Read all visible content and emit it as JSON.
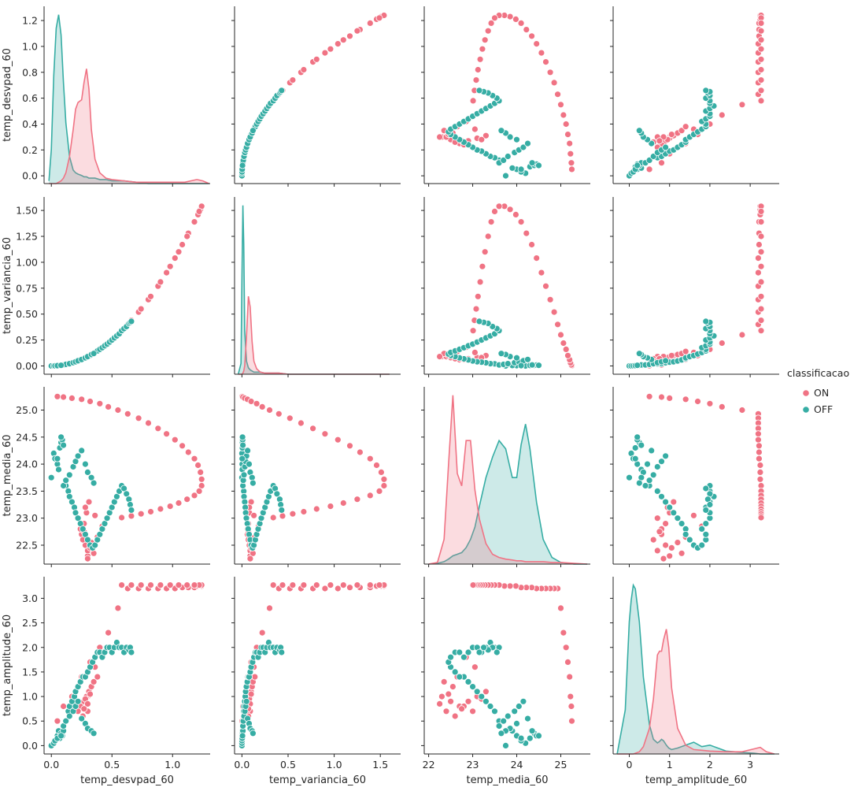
{
  "chart_data": {
    "type": "scatter",
    "subtype": "pairplot",
    "hue": "classificacao",
    "variables": [
      "temp_desvpad_60",
      "temp_variancia_60",
      "temp_media_60",
      "temp_amplitude_60"
    ],
    "legend": {
      "title": "classificacao",
      "placement": "right",
      "entries": [
        {
          "label": "ON",
          "color": "#f07384"
        },
        {
          "label": "OFF",
          "color": "#36ada4"
        }
      ]
    },
    "colors": {
      "ON": "#f07384",
      "OFF": "#36ada4",
      "axis": "#262626"
    },
    "grid": false,
    "axes": {
      "temp_desvpad_60": {
        "range": [
          -0.06,
          1.31
        ],
        "ticks": [
          0.0,
          0.5,
          1.0
        ],
        "tick_labels": [
          "0.0",
          "0.5",
          "1.0"
        ],
        "y_range": [
          -0.06,
          1.31
        ],
        "y_ticks": [
          0.0,
          0.2,
          0.4,
          0.6,
          0.8,
          1.0,
          1.2
        ],
        "y_tick_labels": [
          "0.0",
          "0.2",
          "0.4",
          "0.6",
          "0.8",
          "1.0",
          "1.2"
        ]
      },
      "temp_variancia_60": {
        "range": [
          -0.08,
          1.72
        ],
        "ticks": [
          0.0,
          0.5,
          1.0,
          1.5
        ],
        "tick_labels": [
          "0.0",
          "0.5",
          "1.0",
          "1.5"
        ],
        "y_range": [
          -0.08,
          1.63
        ],
        "y_ticks": [
          0.0,
          0.25,
          0.5,
          0.75,
          1.0,
          1.25,
          1.5
        ],
        "y_tick_labels": [
          "0.00",
          "0.25",
          "0.50",
          "0.75",
          "1.00",
          "1.25",
          "1.50"
        ]
      },
      "temp_media_60": {
        "range": [
          21.9,
          25.67
        ],
        "ticks": [
          22,
          23,
          24,
          25
        ],
        "tick_labels": [
          "22",
          "23",
          "24",
          "25"
        ],
        "y_range": [
          22.15,
          25.43
        ],
        "y_ticks": [
          22.5,
          23.0,
          23.5,
          24.0,
          24.5,
          25.0
        ],
        "y_tick_labels": [
          "22.5",
          "23.0",
          "23.5",
          "24.0",
          "24.5",
          "25.0"
        ]
      },
      "temp_amplitude_60": {
        "range": [
          -0.4,
          3.72
        ],
        "ticks": [
          0,
          1,
          2,
          3
        ],
        "tick_labels": [
          "0",
          "1",
          "2",
          "3"
        ],
        "y_range": [
          -0.17,
          3.44
        ],
        "y_ticks": [
          0.0,
          0.5,
          1.0,
          1.5,
          2.0,
          2.5,
          3.0
        ],
        "y_tick_labels": [
          "0.0",
          "0.5",
          "1.0",
          "1.5",
          "2.0",
          "2.5",
          "3.0"
        ]
      }
    },
    "kde": {
      "temp_desvpad_60": {
        "x": [
          -0.02,
          0.0,
          0.02,
          0.04,
          0.06,
          0.08,
          0.1,
          0.12,
          0.15,
          0.18,
          0.2,
          0.22,
          0.25,
          0.27,
          0.29,
          0.31,
          0.33,
          0.36,
          0.4,
          0.45,
          0.5,
          0.6,
          0.7,
          0.8,
          1.0,
          1.1,
          1.2,
          1.25,
          1.3
        ],
        "ON": [
          0,
          0,
          0,
          0,
          0.01,
          0.02,
          0.04,
          0.08,
          0.2,
          0.4,
          0.55,
          0.6,
          0.62,
          0.75,
          0.85,
          0.7,
          0.4,
          0.18,
          0.08,
          0.04,
          0.03,
          0.02,
          0.01,
          0.01,
          0.01,
          0.01,
          0.03,
          0.02,
          0.0
        ],
        "OFF": [
          0.02,
          0.25,
          0.8,
          1.15,
          1.25,
          1.1,
          0.75,
          0.45,
          0.2,
          0.1,
          0.08,
          0.07,
          0.06,
          0.05,
          0.05,
          0.04,
          0.04,
          0.04,
          0.03,
          0.03,
          0.02,
          0.02,
          0.01,
          0.0,
          0.0,
          0.0,
          0.0,
          0.0,
          0.0
        ]
      },
      "temp_variancia_60": {
        "x": [
          -0.04,
          -0.01,
          0.0,
          0.01,
          0.02,
          0.03,
          0.05,
          0.07,
          0.09,
          0.11,
          0.13,
          0.16,
          0.2,
          0.25,
          0.3,
          0.4,
          0.5,
          0.8,
          1.2,
          1.6
        ],
        "ON": [
          0,
          0,
          0,
          0.01,
          0.03,
          0.08,
          0.35,
          0.72,
          0.62,
          0.3,
          0.12,
          0.05,
          0.02,
          0.01,
          0.01,
          0.01,
          0.0,
          0.0,
          0.0,
          0.0
        ],
        "OFF": [
          0,
          0.1,
          0.9,
          1.56,
          1.2,
          0.4,
          0.12,
          0.06,
          0.04,
          0.03,
          0.02,
          0.02,
          0.02,
          0.01,
          0.01,
          0.01,
          0.0,
          0.0,
          0.0,
          0.0
        ]
      },
      "temp_media_60": {
        "x": [
          22.0,
          22.2,
          22.35,
          22.45,
          22.55,
          22.65,
          22.75,
          22.85,
          22.95,
          23.05,
          23.15,
          23.3,
          23.45,
          23.6,
          23.75,
          23.9,
          24.0,
          24.1,
          24.2,
          24.3,
          24.45,
          24.6,
          24.8,
          25.0,
          25.3,
          25.6
        ],
        "ON": [
          0.0,
          0.02,
          0.3,
          1.2,
          2.05,
          1.1,
          0.95,
          1.5,
          1.5,
          0.9,
          0.55,
          0.25,
          0.12,
          0.08,
          0.06,
          0.05,
          0.04,
          0.04,
          0.03,
          0.03,
          0.03,
          0.03,
          0.02,
          0.02,
          0.01,
          0.0
        ],
        "OFF": [
          0.0,
          0.01,
          0.03,
          0.06,
          0.1,
          0.12,
          0.14,
          0.2,
          0.3,
          0.45,
          0.7,
          1.05,
          1.3,
          1.5,
          1.4,
          1.05,
          1.05,
          1.45,
          1.7,
          1.4,
          0.75,
          0.3,
          0.08,
          0.02,
          0.0,
          0.0
        ]
      },
      "temp_amplitude_60": {
        "x": [
          -0.3,
          -0.1,
          0.0,
          0.05,
          0.1,
          0.15,
          0.25,
          0.35,
          0.5,
          0.6,
          0.7,
          0.75,
          0.8,
          0.85,
          0.92,
          0.98,
          1.05,
          1.2,
          1.4,
          1.6,
          1.8,
          2.0,
          2.4,
          2.8,
          3.1,
          3.25,
          3.4,
          3.6
        ],
        "ON": [
          0,
          0,
          0,
          0,
          0,
          0.01,
          0.03,
          0.1,
          0.35,
          0.75,
          1.35,
          1.4,
          1.4,
          1.55,
          1.7,
          1.45,
          0.9,
          0.35,
          0.12,
          0.06,
          0.05,
          0.04,
          0.03,
          0.03,
          0.07,
          0.09,
          0.03,
          0.0
        ],
        "OFF": [
          0.0,
          0.6,
          1.8,
          2.1,
          2.3,
          2.25,
          1.8,
          1.05,
          0.4,
          0.2,
          0.15,
          0.17,
          0.2,
          0.18,
          0.12,
          0.08,
          0.06,
          0.08,
          0.12,
          0.16,
          0.1,
          0.12,
          0.04,
          0.02,
          0.01,
          0.0,
          0.0,
          0.0
        ]
      }
    },
    "observations": {
      "ON": [
        [
          0.05,
          0.002,
          25.25,
          0.5
        ],
        [
          0.1,
          0.01,
          25.24,
          0.8
        ],
        [
          0.17,
          0.03,
          25.22,
          1.0
        ],
        [
          0.25,
          0.06,
          25.2,
          1.4
        ],
        [
          0.32,
          0.1,
          25.16,
          1.7
        ],
        [
          0.4,
          0.16,
          25.12,
          2.0
        ],
        [
          0.47,
          0.22,
          25.06,
          2.3
        ],
        [
          0.55,
          0.3,
          25.0,
          2.8
        ],
        [
          0.63,
          0.4,
          24.93,
          3.2
        ],
        [
          0.72,
          0.52,
          24.85,
          3.2
        ],
        [
          0.8,
          0.64,
          24.76,
          3.2
        ],
        [
          0.88,
          0.77,
          24.66,
          3.2
        ],
        [
          0.95,
          0.9,
          24.56,
          3.2
        ],
        [
          1.02,
          1.04,
          24.45,
          3.2
        ],
        [
          1.08,
          1.17,
          24.34,
          3.22
        ],
        [
          1.13,
          1.28,
          24.22,
          3.22
        ],
        [
          1.18,
          1.39,
          24.1,
          3.22
        ],
        [
          1.21,
          1.46,
          23.98,
          3.25
        ],
        [
          1.23,
          1.51,
          23.85,
          3.25
        ],
        [
          1.24,
          1.54,
          23.72,
          3.25
        ],
        [
          1.24,
          1.54,
          23.6,
          3.27
        ],
        [
          1.22,
          1.49,
          23.5,
          3.27
        ],
        [
          1.18,
          1.39,
          23.42,
          3.27
        ],
        [
          1.12,
          1.25,
          23.35,
          3.27
        ],
        [
          1.05,
          1.1,
          23.28,
          3.27
        ],
        [
          0.98,
          0.96,
          23.22,
          3.27
        ],
        [
          0.9,
          0.81,
          23.17,
          3.27
        ],
        [
          0.82,
          0.67,
          23.12,
          3.27
        ],
        [
          0.74,
          0.55,
          23.08,
          3.27
        ],
        [
          0.66,
          0.44,
          23.04,
          3.27
        ],
        [
          0.58,
          0.34,
          23.01,
          3.27
        ],
        [
          0.3,
          0.09,
          22.3,
          1.0
        ],
        [
          0.28,
          0.08,
          22.5,
          0.9
        ],
        [
          0.25,
          0.06,
          22.7,
          0.8
        ],
        [
          0.27,
          0.07,
          22.9,
          0.9
        ],
        [
          0.29,
          0.08,
          23.1,
          1.0
        ],
        [
          0.31,
          0.1,
          23.3,
          1.1
        ],
        [
          0.3,
          0.09,
          22.4,
          0.7
        ],
        [
          0.26,
          0.07,
          22.6,
          0.6
        ],
        [
          0.24,
          0.06,
          22.8,
          0.8
        ],
        [
          0.33,
          0.11,
          22.55,
          1.2
        ],
        [
          0.35,
          0.12,
          22.35,
          1.3
        ],
        [
          0.22,
          0.05,
          23.0,
          0.7
        ],
        [
          0.28,
          0.08,
          23.2,
          0.95
        ],
        [
          0.32,
          0.1,
          22.45,
          1.05
        ],
        [
          0.38,
          0.14,
          22.65,
          1.4
        ],
        [
          0.42,
          0.18,
          22.85,
          1.8
        ],
        [
          0.36,
          0.13,
          23.05,
          1.6
        ],
        [
          0.3,
          0.09,
          22.25,
          0.85
        ],
        [
          0.27,
          0.07,
          22.75,
          0.75
        ]
      ],
      "OFF": [
        [
          0.0,
          0.0,
          23.75,
          0.0
        ],
        [
          0.02,
          0.0,
          24.2,
          0.05
        ],
        [
          0.03,
          0.001,
          24.1,
          0.1
        ],
        [
          0.05,
          0.003,
          24.0,
          0.2
        ],
        [
          0.06,
          0.004,
          23.9,
          0.3
        ],
        [
          0.07,
          0.005,
          24.3,
          0.15
        ],
        [
          0.08,
          0.006,
          24.4,
          0.25
        ],
        [
          0.09,
          0.008,
          24.45,
          0.2
        ],
        [
          0.1,
          0.01,
          24.35,
          0.3
        ],
        [
          0.12,
          0.014,
          23.6,
          0.5
        ],
        [
          0.14,
          0.02,
          23.5,
          0.7
        ],
        [
          0.15,
          0.022,
          23.4,
          0.8
        ],
        [
          0.17,
          0.03,
          23.3,
          0.9
        ],
        [
          0.19,
          0.036,
          23.2,
          1.0
        ],
        [
          0.2,
          0.04,
          23.1,
          1.1
        ],
        [
          0.22,
          0.048,
          23.0,
          1.2
        ],
        [
          0.24,
          0.058,
          22.9,
          1.3
        ],
        [
          0.26,
          0.068,
          22.8,
          1.4
        ],
        [
          0.28,
          0.078,
          22.7,
          1.4
        ],
        [
          0.3,
          0.09,
          22.6,
          1.5
        ],
        [
          0.32,
          0.1,
          22.5,
          1.6
        ],
        [
          0.34,
          0.115,
          22.45,
          1.7
        ],
        [
          0.36,
          0.13,
          22.5,
          1.8
        ],
        [
          0.38,
          0.145,
          22.6,
          1.9
        ],
        [
          0.4,
          0.16,
          22.7,
          1.9
        ],
        [
          0.42,
          0.176,
          22.8,
          1.8
        ],
        [
          0.44,
          0.194,
          22.9,
          1.9
        ],
        [
          0.46,
          0.21,
          23.0,
          2.0
        ],
        [
          0.48,
          0.23,
          23.1,
          2.0
        ],
        [
          0.5,
          0.25,
          23.2,
          1.9
        ],
        [
          0.52,
          0.27,
          23.3,
          2.0
        ],
        [
          0.54,
          0.29,
          23.4,
          2.1
        ],
        [
          0.56,
          0.31,
          23.5,
          2.0
        ],
        [
          0.58,
          0.34,
          23.6,
          2.0
        ],
        [
          0.6,
          0.36,
          23.55,
          1.9
        ],
        [
          0.62,
          0.38,
          23.45,
          2.0
        ],
        [
          0.64,
          0.41,
          23.35,
          1.95
        ],
        [
          0.65,
          0.42,
          23.25,
          2.0
        ],
        [
          0.66,
          0.43,
          23.15,
          1.9
        ],
        [
          0.1,
          0.01,
          23.6,
          0.4
        ],
        [
          0.12,
          0.015,
          23.7,
          0.5
        ],
        [
          0.15,
          0.022,
          23.8,
          0.6
        ],
        [
          0.18,
          0.032,
          23.95,
          0.7
        ],
        [
          0.2,
          0.04,
          24.05,
          0.8
        ],
        [
          0.22,
          0.05,
          24.15,
          0.9
        ],
        [
          0.25,
          0.062,
          24.25,
          0.55
        ],
        [
          0.28,
          0.078,
          24.0,
          0.45
        ],
        [
          0.3,
          0.09,
          23.85,
          0.35
        ],
        [
          0.33,
          0.11,
          23.75,
          0.3
        ],
        [
          0.35,
          0.12,
          23.65,
          0.25
        ],
        [
          0.05,
          0.003,
          24.1,
          0.15
        ],
        [
          0.08,
          0.006,
          24.5,
          0.2
        ]
      ]
    }
  }
}
